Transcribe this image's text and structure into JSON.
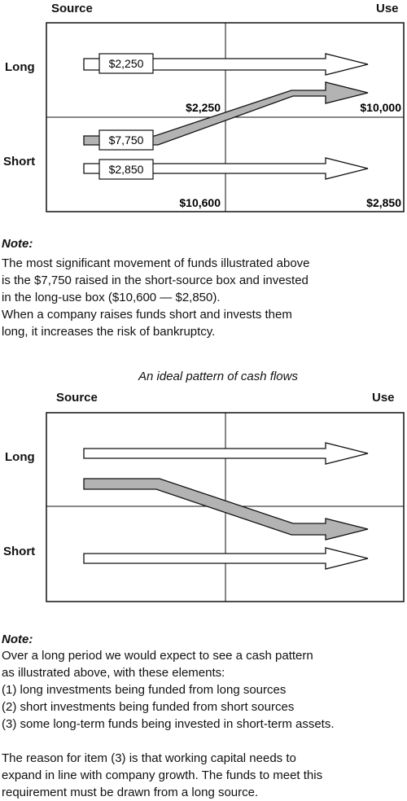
{
  "diagram1": {
    "col_source": "Source",
    "col_use": "Use",
    "row_long": "Long",
    "row_short": "Short",
    "source_long_value": "$2,250",
    "source_short_value_a": "$7,750",
    "source_short_value_b": "$2,850",
    "total_long_source": "$2,250",
    "total_long_use": "$10,000",
    "total_short_source": "$10,600",
    "total_short_use": "$2,850"
  },
  "note1": {
    "title": "Note:",
    "lines": [
      "The most significant movement of funds illustrated above",
      "is the $7,750 raised in the short-source box and invested",
      "in the long-use box ($10,600 — $2,850).",
      "When a company raises funds short and invests them",
      "long, it increases the risk of bankruptcy."
    ]
  },
  "diagram2": {
    "caption": "An ideal pattern of cash flows",
    "col_source": "Source",
    "col_use": "Use",
    "row_long": "Long",
    "row_short": "Short"
  },
  "note2": {
    "title": "Note:",
    "lines": [
      "Over a long period we would expect to see a cash pattern",
      "as illustrated above, with these elements:",
      "(1)  long investments being funded from long sources",
      "(2)  short investments being funded from short sources",
      "(3)  some long-term funds being invested in short-term assets.",
      "",
      "The reason for item (3) is that working capital needs to",
      "expand in line with company growth. The funds to meet this",
      "requirement must be drawn from a long source."
    ]
  },
  "colors": {
    "arrow_fill": "#ffffff",
    "highlight_arrow_fill": "#b3b3b3",
    "stroke": "#111111"
  }
}
